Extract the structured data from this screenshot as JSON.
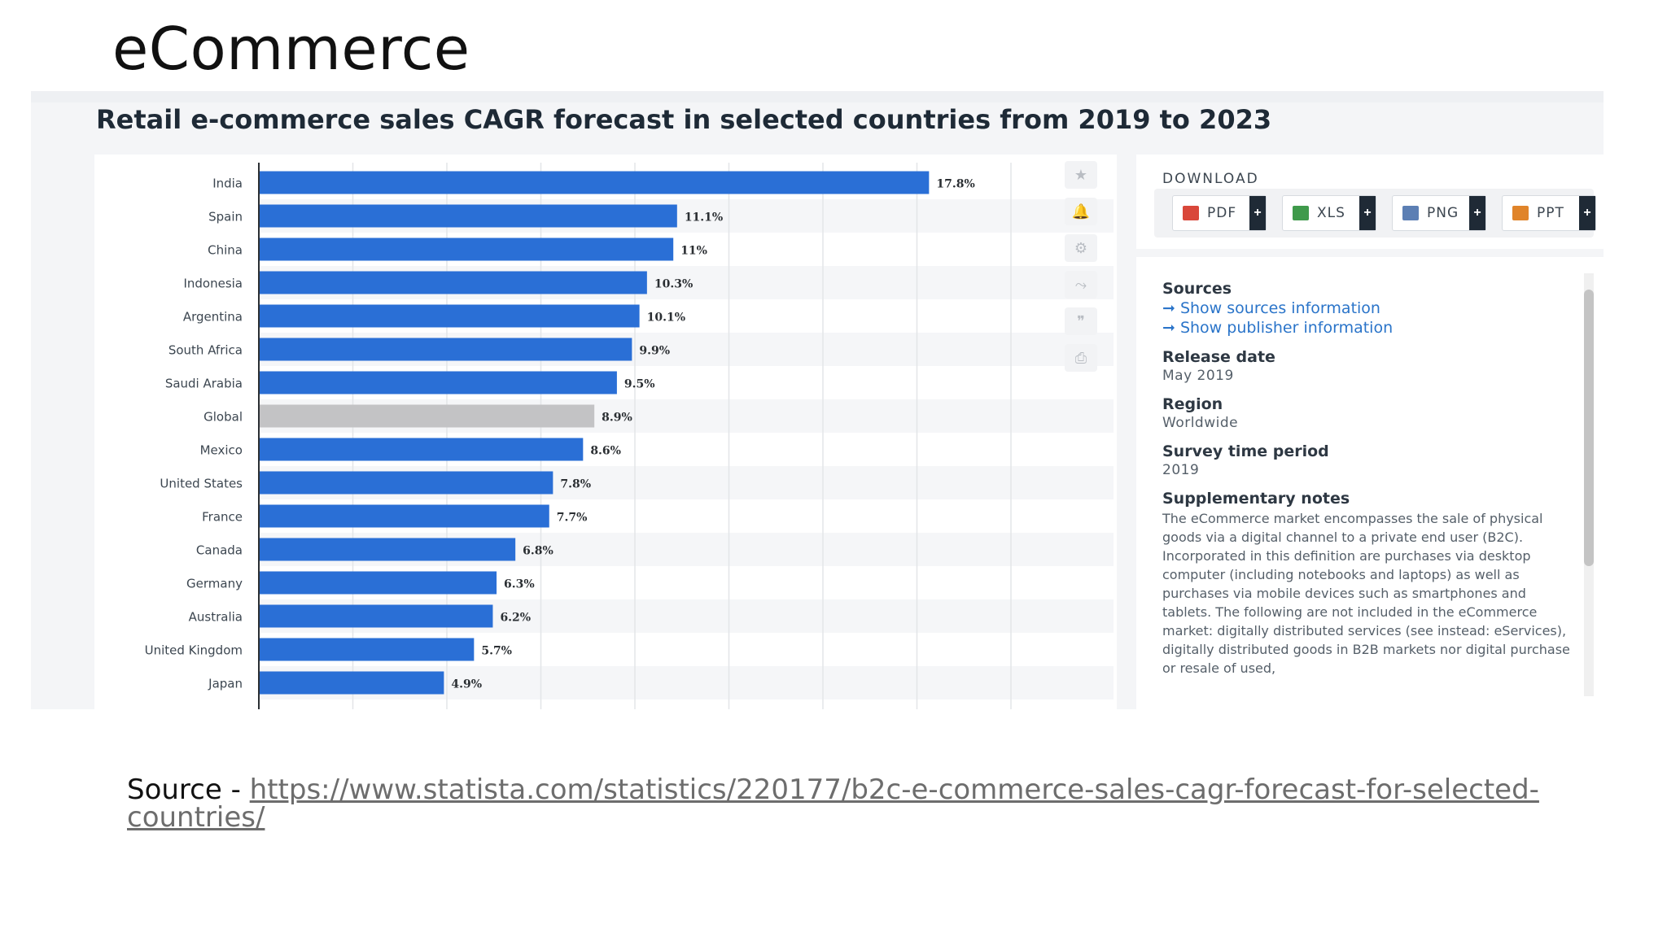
{
  "slide": {
    "title": "eCommerce",
    "source_prefix": "Source - ",
    "source_url_line1": "https://www.statista.com/statistics/220177/b2c-e-commerce-sales-cagr-forecast-for-selected-",
    "source_url_line2": "countries/"
  },
  "chart_data": {
    "type": "bar",
    "orientation": "horizontal",
    "title": "Retail e-commerce sales CAGR forecast in selected countries from 2019 to 2023",
    "categories": [
      "India",
      "Spain",
      "China",
      "Indonesia",
      "Argentina",
      "South Africa",
      "Saudi Arabia",
      "Global",
      "Mexico",
      "United States",
      "France",
      "Canada",
      "Germany",
      "Australia",
      "United Kingdom",
      "Japan"
    ],
    "values": [
      17.8,
      11.1,
      11,
      10.3,
      10.1,
      9.9,
      9.5,
      8.9,
      8.6,
      7.8,
      7.7,
      6.8,
      6.3,
      6.2,
      5.7,
      4.9
    ],
    "value_labels": [
      "17.8%",
      "11.1%",
      "11%",
      "10.3%",
      "10.1%",
      "9.9%",
      "9.5%",
      "8.9%",
      "8.6%",
      "7.8%",
      "7.7%",
      "6.8%",
      "6.3%",
      "6.2%",
      "5.7%",
      "4.9%"
    ],
    "xlim": [
      0,
      20
    ],
    "grid": true,
    "colors": {
      "bar": "#2a6fd6",
      "highlight_bar": "#c3c3c5",
      "highlight_category": "Global"
    }
  },
  "toolbar": {
    "icons": [
      "star-icon",
      "bell-icon",
      "gear-icon",
      "share-icon",
      "quote-icon",
      "print-icon"
    ],
    "glyphs": [
      "★",
      "🔔",
      "⚙",
      "⤳",
      "❞",
      "⎙"
    ]
  },
  "download": {
    "title": "DOWNLOAD",
    "buttons": [
      {
        "label": "PDF",
        "color": "#d9473a"
      },
      {
        "label": "XLS",
        "color": "#3f9a4b"
      },
      {
        "label": "PNG",
        "color": "#5c7fb4"
      },
      {
        "label": "PPT",
        "color": "#e0842a"
      }
    ],
    "plus": "+"
  },
  "info": {
    "sources_h": "Sources",
    "show_sources": "➞ Show sources information",
    "show_publisher": "➞ Show publisher information",
    "release_h": "Release date",
    "release_v": "May 2019",
    "region_h": "Region",
    "region_v": "Worldwide",
    "survey_h": "Survey time period",
    "survey_v": "2019",
    "notes_h": "Supplementary notes",
    "notes_v": "The eCommerce market encompasses the sale of physical goods via a digital channel to a private end user (B2C). Incorporated in this definition are purchases via desktop computer (including notebooks and laptops) as well as purchases via mobile devices such as smartphones and tablets. The following are not included in the eCommerce market: digitally distributed services (see instead: eServices), digitally distributed goods in B2B markets nor digital purchase or resale of used,"
  }
}
